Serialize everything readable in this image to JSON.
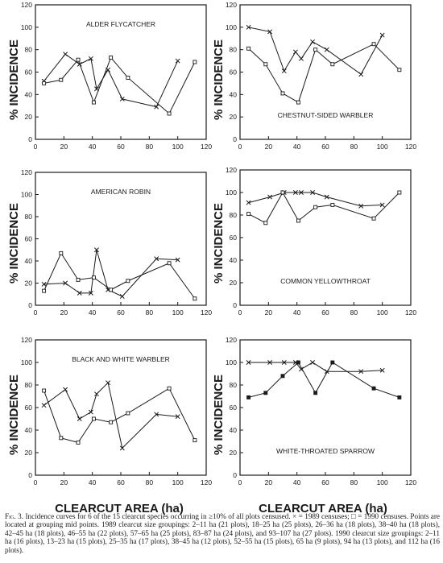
{
  "figure": {
    "xlabel": "CLEARCUT AREA (ha)",
    "ylabel": "% INCIDENCE",
    "caption_label": "Fig. 3.",
    "caption_text": "Incidence curves for 6 of the 15 clearcut species occurring in ≥10% of all plots censused. × = 1989 censuses; □ = 1990 censuses. Points are located at grouping mid points. 1989 clearcut size groupings: 2–11 ha (21 plots), 18–25 ha (25 plots), 26–36 ha (18 plots), 38–40 ha (18 plots), 42–45 ha (18 plots), 46–55 ha (22 plots), 57–65 ha (25 plots), 83–87 ha (24 plots), and 93–107 ha (27 plots). 1990 clearcut size groupings: 2–11 ha (16 plots), 13–23 ha (15 plots), 25–35 ha (17 plots), 38–45 ha (12 plots), 52–55 ha (15 plots), 65 ha (9 plots), 94 ha (13 plots), and 112 ha (16 plots)."
  },
  "chart_data": [
    {
      "type": "line",
      "title": "ALDER FLYCATCHER",
      "xlim": [
        0,
        120
      ],
      "ylim": [
        0,
        120
      ],
      "xticks": [
        0,
        20,
        40,
        60,
        80,
        100,
        120
      ],
      "yticks": [
        0,
        20,
        40,
        60,
        80,
        100,
        120
      ],
      "series": [
        {
          "marker": "x",
          "x": [
            6,
            21,
            31,
            39,
            43,
            51,
            61,
            85,
            100
          ],
          "y": [
            52,
            76,
            67,
            72,
            45,
            62,
            36,
            29,
            70
          ]
        },
        {
          "marker": "square",
          "x": [
            6,
            18,
            30,
            41,
            53,
            65,
            94,
            112
          ],
          "y": [
            50,
            53,
            71,
            33,
            73,
            55,
            23,
            69
          ]
        }
      ]
    },
    {
      "type": "line",
      "title": "CHESTNUT-SIDED WARBLER",
      "xlim": [
        0,
        120
      ],
      "ylim": [
        0,
        120
      ],
      "xticks": [
        0,
        20,
        40,
        60,
        80,
        100,
        120
      ],
      "yticks": [
        0,
        20,
        40,
        60,
        80,
        100,
        120
      ],
      "series": [
        {
          "marker": "x",
          "x": [
            6,
            21,
            31,
            39,
            43,
            51,
            61,
            85,
            100
          ],
          "y": [
            100,
            96,
            61,
            78,
            72,
            87,
            80,
            58,
            93
          ]
        },
        {
          "marker": "square",
          "x": [
            6,
            18,
            30,
            41,
            53,
            65,
            94,
            112
          ],
          "y": [
            81,
            67,
            41,
            33,
            80,
            67,
            85,
            62
          ]
        }
      ]
    },
    {
      "type": "line",
      "title": "AMERICAN ROBIN",
      "xlim": [
        0,
        120
      ],
      "ylim": [
        0,
        120
      ],
      "xticks": [
        0,
        20,
        40,
        60,
        80,
        100,
        120
      ],
      "yticks": [
        0,
        20,
        40,
        60,
        80,
        100,
        120
      ],
      "series": [
        {
          "marker": "x",
          "x": [
            6,
            21,
            31,
            39,
            43,
            51,
            61,
            85,
            100
          ],
          "y": [
            19,
            20,
            11,
            11,
            50,
            14,
            8,
            42,
            41
          ]
        },
        {
          "marker": "square",
          "x": [
            6,
            18,
            30,
            41,
            53,
            65,
            94,
            112
          ],
          "y": [
            13,
            47,
            23,
            25,
            14,
            22,
            38,
            6
          ]
        }
      ]
    },
    {
      "type": "line",
      "title": "COMMON YELLOWTHROAT",
      "xlim": [
        0,
        120
      ],
      "ylim": [
        0,
        120
      ],
      "xticks": [
        0,
        20,
        40,
        60,
        80,
        100,
        120
      ],
      "yticks": [
        0,
        20,
        40,
        60,
        80,
        100,
        120
      ],
      "series": [
        {
          "marker": "x",
          "x": [
            6,
            21,
            31,
            39,
            43,
            51,
            61,
            85,
            100
          ],
          "y": [
            91,
            96,
            100,
            100,
            100,
            100,
            96,
            88,
            89
          ]
        },
        {
          "marker": "square",
          "x": [
            6,
            18,
            30,
            41,
            53,
            65,
            94,
            112
          ],
          "y": [
            81,
            73,
            100,
            75,
            87,
            89,
            77,
            100
          ]
        }
      ]
    },
    {
      "type": "line",
      "title": "BLACK AND WHITE WARBLER",
      "xlim": [
        0,
        120
      ],
      "ylim": [
        0,
        120
      ],
      "xticks": [
        0,
        20,
        40,
        60,
        80,
        100,
        120
      ],
      "yticks": [
        0,
        20,
        40,
        60,
        80,
        100,
        120
      ],
      "series": [
        {
          "marker": "x",
          "x": [
            6,
            21,
            31,
            39,
            43,
            51,
            61,
            85,
            100
          ],
          "y": [
            62,
            76,
            50,
            56,
            72,
            82,
            24,
            54,
            52
          ]
        },
        {
          "marker": "square",
          "x": [
            6,
            18,
            30,
            41,
            53,
            65,
            94,
            112
          ],
          "y": [
            75,
            33,
            29,
            50,
            47,
            55,
            77,
            31
          ]
        }
      ]
    },
    {
      "type": "line",
      "title": "WHITE-THROATED SPARROW",
      "xlim": [
        0,
        120
      ],
      "ylim": [
        0,
        120
      ],
      "xticks": [
        0,
        20,
        40,
        60,
        80,
        100,
        120
      ],
      "yticks": [
        0,
        20,
        40,
        60,
        80,
        100,
        120
      ],
      "series": [
        {
          "marker": "x",
          "x": [
            6,
            21,
            31,
            39,
            43,
            51,
            61,
            85,
            100
          ],
          "y": [
            100,
            100,
            100,
            100,
            94,
            100,
            92,
            92,
            93
          ]
        },
        {
          "marker": "square",
          "x": [
            6,
            18,
            30,
            41,
            53,
            65,
            94,
            112
          ],
          "y": [
            69,
            73,
            88,
            100,
            73,
            100,
            77,
            69
          ]
        }
      ]
    }
  ]
}
